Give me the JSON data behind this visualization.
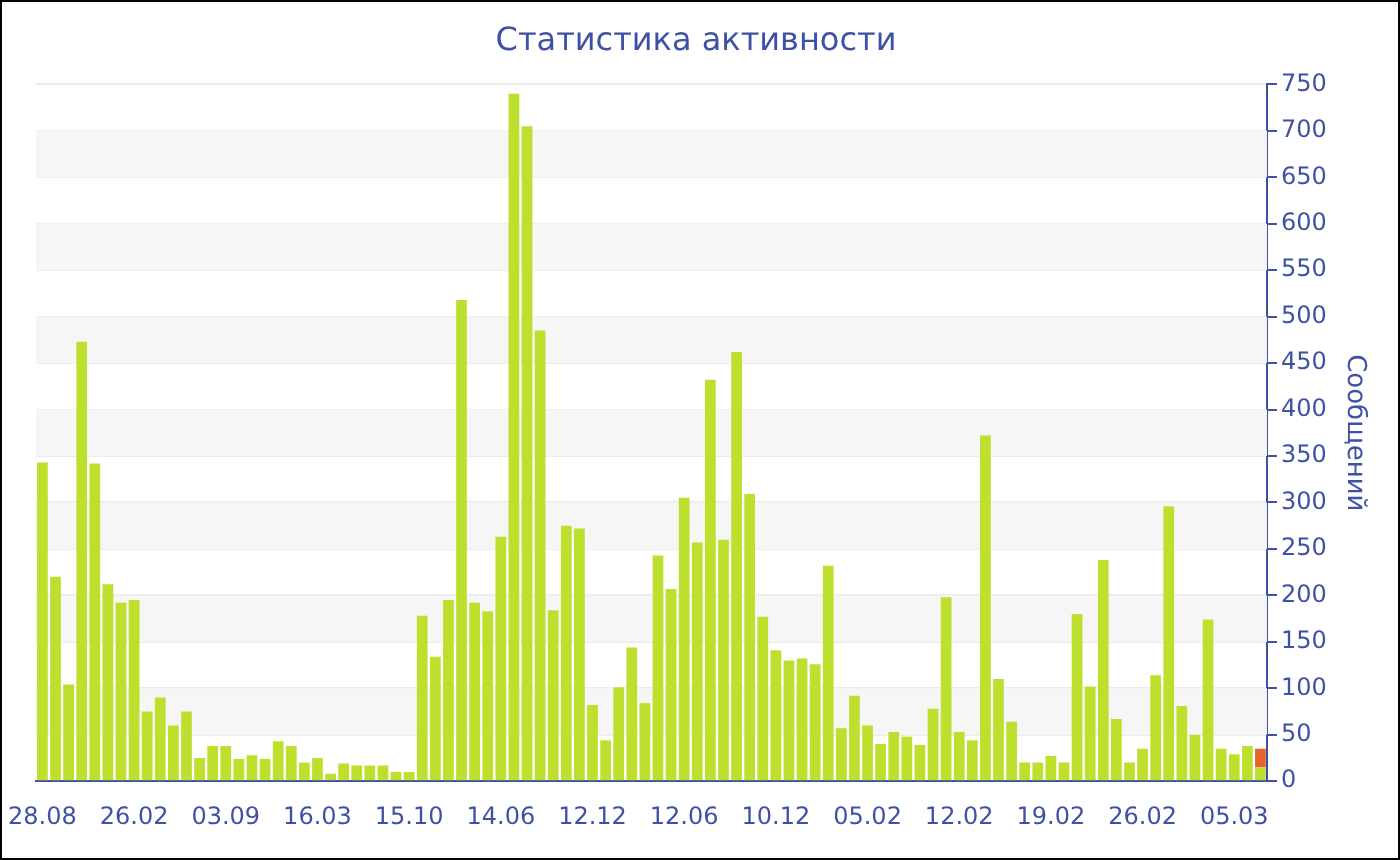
{
  "chart_data": {
    "type": "bar",
    "title": "Статистика активности",
    "ylabel": "Сообщений",
    "categories": [
      "28.08",
      null,
      null,
      null,
      null,
      null,
      null,
      "26.02",
      null,
      null,
      null,
      null,
      null,
      null,
      "03.09",
      null,
      null,
      null,
      null,
      null,
      null,
      "16.03",
      null,
      null,
      null,
      null,
      null,
      null,
      "15.10",
      null,
      null,
      null,
      null,
      null,
      null,
      "14.06",
      null,
      null,
      null,
      null,
      null,
      null,
      "12.12",
      null,
      null,
      null,
      null,
      null,
      null,
      "12.06",
      null,
      null,
      null,
      null,
      null,
      null,
      "10.12",
      null,
      null,
      null,
      null,
      null,
      null,
      "05.02",
      null,
      null,
      null,
      null,
      null,
      null,
      "12.02",
      null,
      null,
      null,
      null,
      null,
      null,
      "19.02",
      null,
      null,
      null,
      null,
      null,
      null,
      "26.02",
      null,
      null,
      null,
      null,
      null,
      null,
      "05.03",
      null,
      null
    ],
    "stacked": true,
    "series": [
      {
        "color": "#bde02f",
        "values": [
          343,
          220,
          104,
          473,
          342,
          212,
          192,
          195,
          75,
          90,
          60,
          75,
          25,
          38,
          38,
          24,
          28,
          24,
          43,
          38,
          20,
          25,
          8,
          19,
          17,
          17,
          17,
          10,
          10,
          178,
          134,
          195,
          518,
          192,
          183,
          263,
          740,
          705,
          485,
          184,
          275,
          272,
          82,
          44,
          101,
          144,
          84,
          243,
          207,
          305,
          257,
          432,
          260,
          462,
          309,
          177,
          141,
          130,
          132,
          126,
          232,
          57,
          92,
          60,
          40,
          53,
          48,
          39,
          78,
          198,
          53,
          44,
          372,
          110,
          64,
          20,
          20,
          27,
          20,
          180,
          102,
          238,
          67,
          20,
          35,
          114,
          296,
          81,
          50,
          174,
          35,
          29,
          38,
          15
        ]
      },
      {
        "color": "#e8642c",
        "values": [
          null,
          null,
          null,
          null,
          null,
          null,
          null,
          null,
          null,
          null,
          null,
          null,
          null,
          null,
          null,
          null,
          null,
          null,
          null,
          null,
          null,
          null,
          null,
          null,
          null,
          null,
          null,
          null,
          null,
          null,
          null,
          null,
          null,
          null,
          null,
          null,
          null,
          null,
          null,
          null,
          null,
          null,
          null,
          null,
          null,
          null,
          null,
          null,
          null,
          null,
          null,
          null,
          null,
          null,
          null,
          null,
          null,
          null,
          null,
          null,
          null,
          null,
          null,
          null,
          null,
          null,
          null,
          null,
          null,
          null,
          null,
          null,
          null,
          null,
          null,
          null,
          null,
          null,
          null,
          null,
          null,
          null,
          null,
          null,
          null,
          null,
          null,
          null,
          null,
          null,
          null,
          null,
          null,
          20
        ]
      }
    ],
    "ylim": [
      0,
      750
    ],
    "yticks": [
      0,
      50,
      100,
      150,
      200,
      250,
      300,
      350,
      400,
      450,
      500,
      550,
      600,
      650,
      700,
      750
    ],
    "grid": true
  }
}
